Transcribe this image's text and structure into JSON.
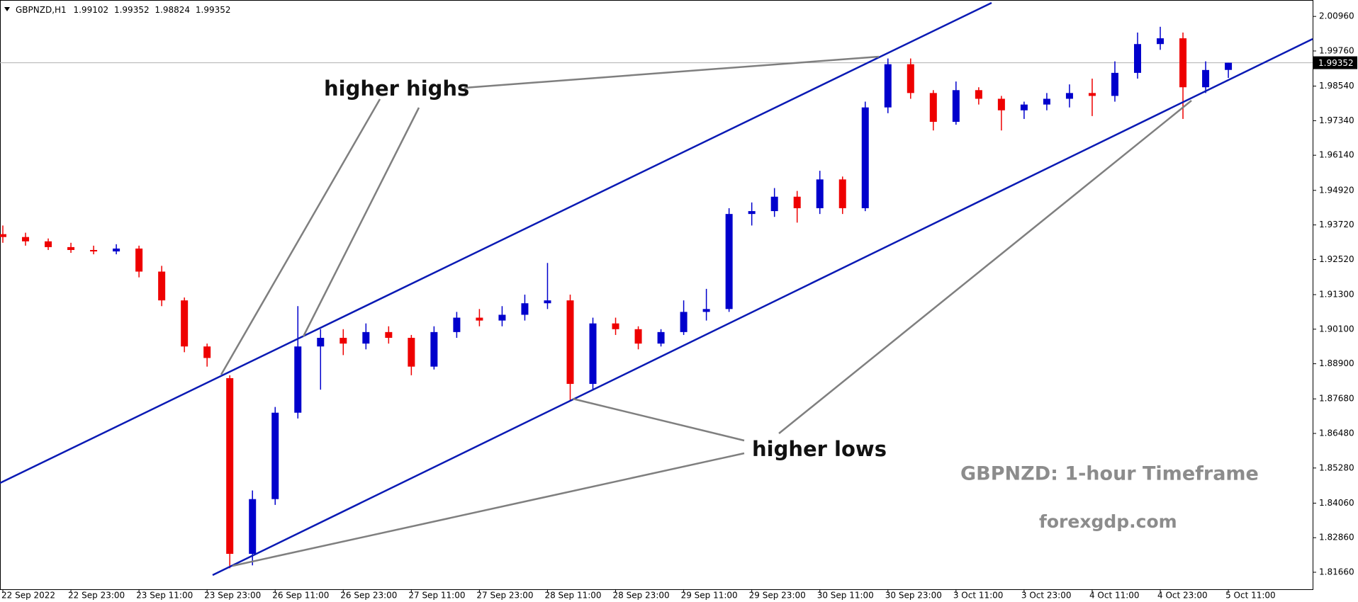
{
  "chart_data": {
    "type": "candlestick",
    "symbol": "GBPNZD,H1",
    "annotations": {
      "higher_highs": "higher highs",
      "higher_lows": "higher lows",
      "timeframe": "GBPNZD: 1-hour Timeframe",
      "watermark": "forexgdp.com"
    },
    "categories": [
      "22 Sep 2022",
      null,
      null,
      "22 Sep 23:00",
      null,
      null,
      "23 Sep 11:00",
      null,
      null,
      "23 Sep 23:00",
      null,
      null,
      "26 Sep 11:00",
      null,
      null,
      "26 Sep 23:00",
      null,
      null,
      "27 Sep 11:00",
      null,
      null,
      "27 Sep 23:00",
      null,
      null,
      "28 Sep 11:00",
      null,
      null,
      "28 Sep 23:00",
      null,
      null,
      "29 Sep 11:00",
      null,
      null,
      "29 Sep 23:00",
      null,
      null,
      "30 Sep 11:00",
      null,
      null,
      "30 Sep 23:00",
      null,
      null,
      "3 Oct 11:00",
      null,
      null,
      "3 Oct 23:00",
      null,
      null,
      "4 Oct 11:00",
      null,
      null,
      "4 Oct 23:00",
      null,
      null,
      "5 Oct 11:00"
    ],
    "open": [
      1.934,
      1.933,
      1.9315,
      1.9295,
      1.9285,
      1.928,
      1.929,
      1.921,
      1.911,
      1.895,
      1.884,
      1.823,
      1.842,
      1.872,
      1.895,
      1.898,
      1.896,
      1.9,
      1.898,
      1.888,
      1.9,
      1.905,
      1.904,
      1.906,
      1.91,
      1.911,
      1.882,
      1.903,
      1.901,
      1.896,
      1.9,
      1.907,
      1.908,
      1.941,
      1.942,
      1.947,
      1.943,
      1.953,
      1.943,
      1.978,
      1.993,
      1.983,
      1.973,
      1.984,
      1.981,
      1.977,
      1.979,
      1.981,
      1.983,
      1.982,
      1.99,
      2.0,
      2.002,
      1.985,
      1.99102
    ],
    "high": [
      1.937,
      1.9345,
      1.9325,
      1.931,
      1.93,
      1.9305,
      1.93,
      1.923,
      1.912,
      1.896,
      1.885,
      1.845,
      1.874,
      1.909,
      1.901,
      1.901,
      1.903,
      1.902,
      1.899,
      1.902,
      1.907,
      1.908,
      1.909,
      1.913,
      1.924,
      1.913,
      1.905,
      1.905,
      1.902,
      1.901,
      1.911,
      1.915,
      1.943,
      1.945,
      1.95,
      1.949,
      1.956,
      1.954,
      1.98,
      1.995,
      1.995,
      1.984,
      1.987,
      1.985,
      1.982,
      1.98,
      1.983,
      1.986,
      1.988,
      1.994,
      2.004,
      2.006,
      2.004,
      1.994,
      1.99352
    ],
    "low": [
      1.931,
      1.93,
      1.9285,
      1.9275,
      1.927,
      1.927,
      1.919,
      1.909,
      1.893,
      1.888,
      1.818,
      1.819,
      1.84,
      1.87,
      1.88,
      1.892,
      1.894,
      1.896,
      1.885,
      1.887,
      1.898,
      1.902,
      1.902,
      1.904,
      1.908,
      1.876,
      1.88,
      1.899,
      1.894,
      1.895,
      1.899,
      1.904,
      1.907,
      1.937,
      1.94,
      1.938,
      1.941,
      1.941,
      1.942,
      1.976,
      1.981,
      1.97,
      1.972,
      1.979,
      1.97,
      1.974,
      1.977,
      1.978,
      1.975,
      1.98,
      1.988,
      1.998,
      1.974,
      1.983,
      1.98824
    ],
    "close": [
      1.933,
      1.9315,
      1.9295,
      1.9285,
      1.928,
      1.929,
      1.921,
      1.911,
      1.895,
      1.891,
      1.823,
      1.842,
      1.872,
      1.895,
      1.898,
      1.896,
      1.9,
      1.898,
      1.888,
      1.9,
      1.905,
      1.904,
      1.906,
      1.91,
      1.911,
      1.882,
      1.903,
      1.901,
      1.896,
      1.9,
      1.907,
      1.908,
      1.941,
      1.942,
      1.947,
      1.943,
      1.953,
      1.943,
      1.978,
      1.993,
      1.983,
      1.973,
      1.984,
      1.981,
      1.977,
      1.979,
      1.981,
      1.983,
      1.982,
      1.99,
      2.0,
      2.002,
      1.985,
      1.991,
      1.99352
    ],
    "up_color": "#0000cc",
    "down_color": "#ee0000",
    "ylim": [
      1.8107,
      2.0153
    ],
    "yticks": [
      {
        "value": 2.0096,
        "label": "2.00960"
      },
      {
        "value": 1.9976,
        "label": "1.99760"
      },
      {
        "value": 1.9854,
        "label": "1.98540"
      },
      {
        "value": 1.9734,
        "label": "1.97340"
      },
      {
        "value": 1.9614,
        "label": "1.96140"
      },
      {
        "value": 1.9492,
        "label": "1.94920"
      },
      {
        "value": 1.9372,
        "label": "1.93720"
      },
      {
        "value": 1.9252,
        "label": "1.92520"
      },
      {
        "value": 1.913,
        "label": "1.91300"
      },
      {
        "value": 1.901,
        "label": "1.90100"
      },
      {
        "value": 1.889,
        "label": "1.88900"
      },
      {
        "value": 1.8768,
        "label": "1.87680"
      },
      {
        "value": 1.8648,
        "label": "1.86480"
      },
      {
        "value": 1.8528,
        "label": "1.85280"
      },
      {
        "value": 1.8406,
        "label": "1.84060"
      },
      {
        "value": 1.8286,
        "label": "1.82860"
      },
      {
        "value": 1.8166,
        "label": "1.81660"
      }
    ]
  }
}
